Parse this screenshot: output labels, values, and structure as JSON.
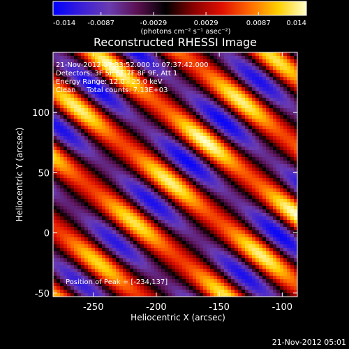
{
  "chart_data": {
    "type": "heatmap",
    "title": "Reconstructed RHESSI Image",
    "xlabel": "Heliocentric X (arcsec)",
    "ylabel": "Heliocentric Y (arcsec)",
    "xlim": [
      -282,
      -88
    ],
    "ylim": [
      -53,
      150
    ],
    "x_ticks": [
      -250,
      -200,
      -150,
      -100
    ],
    "x_tick_labels": [
      "-250",
      "-200",
      "-150",
      "-100"
    ],
    "y_ticks": [
      -50,
      0,
      50,
      100
    ],
    "y_tick_labels": [
      "-50",
      "0",
      "50",
      "100"
    ],
    "colorbar": {
      "range": [
        -0.014,
        0.014
      ],
      "ticks": [
        -0.014,
        -0.0087,
        -0.0029,
        0.0029,
        0.0087,
        0.014
      ],
      "tick_labels": [
        "-0.014",
        "-0.0087",
        "-0.0029",
        "0.0029",
        "0.0087",
        "0.014"
      ],
      "unit_label": "(photons cm⁻² s⁻¹ asec⁻²)",
      "colormap": [
        "#0000ff",
        "#3a1fd8",
        "#6a3cb0",
        "#5a1050",
        "#000000",
        "#8a0000",
        "#e01000",
        "#ff6a00",
        "#ffd000",
        "#ffffcc"
      ]
    },
    "annotations": [
      "21-Nov-2012 07:33:52.000 to 07:37:42.000",
      "Detectors: 3F 5F 6F 7F 8F 9F, Att 1",
      "Energy Range: 12.0 - 25.0 keV",
      "Clean     Total counts: 7.13E+03"
    ],
    "peak_label": "Position of Peak = [-234,137]",
    "peak_position": [
      -234,
      137
    ],
    "pattern": {
      "description": "diagonal fringe pattern",
      "fringe_period_arcsec": 44,
      "stripe_angle_deg": -40
    }
  },
  "footer": {
    "timestamp": "21-Nov-2012 05:01"
  }
}
